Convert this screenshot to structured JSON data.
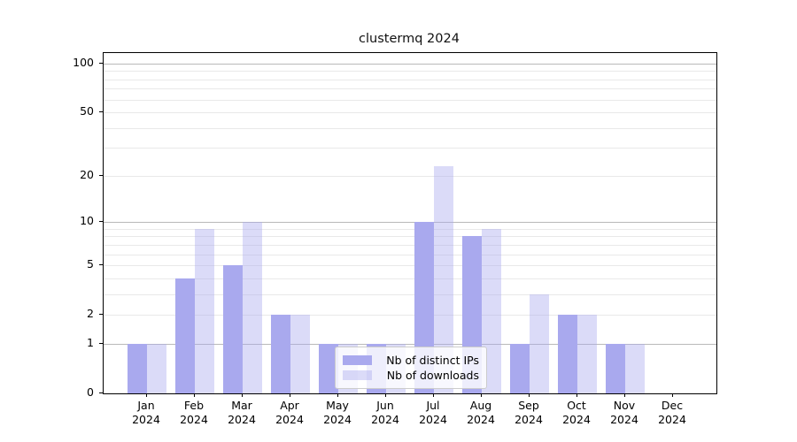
{
  "title": "clustermq 2024",
  "chart_data": {
    "type": "bar",
    "title": "clustermq 2024",
    "categories": [
      "Jan 2024",
      "Feb 2024",
      "Mar 2024",
      "Apr 2024",
      "May 2024",
      "Jun 2024",
      "Jul 2024",
      "Aug 2024",
      "Sep 2024",
      "Oct 2024",
      "Nov 2024",
      "Dec 2024"
    ],
    "series": [
      {
        "name": "Nb of distinct IPs",
        "color": "#a9a9ee",
        "values": [
          1,
          4,
          5,
          2,
          1,
          1,
          10,
          8,
          1,
          2,
          1,
          0
        ]
      },
      {
        "name": "Nb of downloads",
        "color": "rgba(169,169,238,0.42)",
        "values": [
          1,
          9,
          10,
          2,
          1,
          1,
          23,
          9,
          3,
          2,
          1,
          0
        ]
      }
    ],
    "xlabel": "",
    "ylabel": "",
    "y_scale": "log1p",
    "y_ticks": [
      0,
      1,
      2,
      5,
      10,
      20,
      50,
      100
    ],
    "y_major_gridlines": [
      1,
      10,
      100
    ],
    "y_minor_gridlines": [
      2,
      3,
      4,
      5,
      6,
      7,
      8,
      9,
      20,
      30,
      40,
      50,
      60,
      70,
      80,
      90
    ],
    "ylim": [
      0,
      115
    ],
    "grid": true,
    "legend_position": "inside lower-center",
    "legend": {
      "items": [
        {
          "label": "Nb of distinct IPs",
          "color": "#a9a9ee"
        },
        {
          "label": "Nb of downloads",
          "color": "rgba(169,169,238,0.42)"
        }
      ]
    }
  }
}
